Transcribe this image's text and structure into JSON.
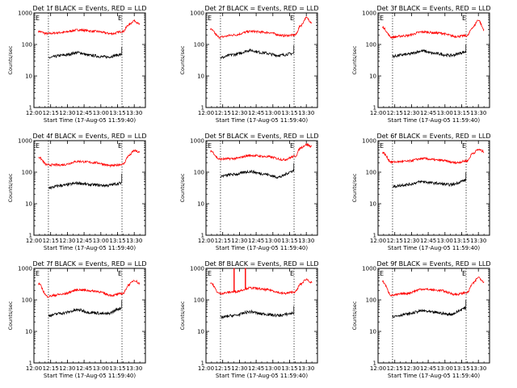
{
  "colors": {
    "events": "#000000",
    "lld": "#ff0000",
    "axes": "#000000",
    "background": "#ffffff"
  },
  "common": {
    "ylabel": "Counts/sec",
    "xlabel": "Start Time (17-Aug-05 11:59:40)",
    "x_ticks": [
      "12:00",
      "12:15",
      "12:30",
      "12:45",
      "13:00",
      "13:15",
      "13:30"
    ],
    "y_ticks": [
      "1",
      "10",
      "100",
      "1000"
    ],
    "marker_left": "E",
    "marker_right": "E"
  },
  "chart_data": [
    {
      "type": "line",
      "title": "Det 1f BLACK = Events, RED = LLD",
      "y_scale": "log",
      "ylim": [
        1,
        1000
      ],
      "xlim_minutes_after": [
        "12:00",
        "13:40"
      ],
      "dashed_lines_at": [
        "12:13",
        "13:19"
      ],
      "series": [
        {
          "color": "red",
          "x": [
            "12:04",
            "12:12",
            "12:25",
            "12:40",
            "12:55",
            "13:10",
            "13:20",
            "13:25",
            "13:30",
            "13:35"
          ],
          "values": [
            260,
            220,
            240,
            290,
            260,
            220,
            260,
            420,
            570,
            430
          ]
        },
        {
          "color": "black",
          "x": [
            "12:13",
            "12:25",
            "12:40",
            "12:50",
            "13:05",
            "13:19"
          ],
          "values": [
            38,
            45,
            55,
            45,
            40,
            48
          ]
        }
      ]
    },
    {
      "type": "line",
      "title": "Det 2f BLACK = Events, RED = LLD",
      "y_scale": "log",
      "ylim": [
        1,
        1000
      ],
      "xlim_minutes_after": [
        "12:00",
        "13:40"
      ],
      "dashed_lines_at": [
        "12:13",
        "13:19"
      ],
      "series": [
        {
          "color": "red",
          "x": [
            "12:04",
            "12:12",
            "12:25",
            "12:40",
            "12:55",
            "13:10",
            "13:20",
            "13:25",
            "13:30",
            "13:35"
          ],
          "values": [
            300,
            170,
            200,
            260,
            240,
            190,
            200,
            400,
            700,
            500
          ]
        },
        {
          "color": "black",
          "x": [
            "12:13",
            "12:25",
            "12:40",
            "12:50",
            "13:05",
            "13:19"
          ],
          "values": [
            38,
            48,
            65,
            55,
            45,
            52
          ]
        }
      ]
    },
    {
      "type": "line",
      "title": "Det 3f BLACK = Events, RED = LLD",
      "y_scale": "log",
      "ylim": [
        1,
        1000
      ],
      "xlim_minutes_after": [
        "12:00",
        "13:40"
      ],
      "dashed_lines_at": [
        "12:13",
        "13:19"
      ],
      "series": [
        {
          "color": "red",
          "x": [
            "12:04",
            "12:12",
            "12:25",
            "12:40",
            "12:55",
            "13:10",
            "13:20",
            "13:25",
            "13:30",
            "13:35"
          ],
          "values": [
            350,
            170,
            190,
            250,
            230,
            180,
            190,
            350,
            600,
            300
          ]
        },
        {
          "color": "black",
          "x": [
            "12:13",
            "12:25",
            "12:40",
            "12:50",
            "13:05",
            "13:19"
          ],
          "values": [
            42,
            48,
            62,
            52,
            45,
            58
          ]
        }
      ]
    },
    {
      "type": "line",
      "title": "Det 4f BLACK = Events, RED = LLD",
      "y_scale": "log",
      "ylim": [
        1,
        1000
      ],
      "xlim_minutes_after": [
        "12:00",
        "13:40"
      ],
      "dashed_lines_at": [
        "12:13",
        "13:19"
      ],
      "series": [
        {
          "color": "red",
          "x": [
            "12:04",
            "12:12",
            "12:25",
            "12:40",
            "12:55",
            "13:10",
            "13:20",
            "13:25",
            "13:30",
            "13:35"
          ],
          "values": [
            300,
            170,
            170,
            220,
            200,
            160,
            180,
            330,
            480,
            420
          ]
        },
        {
          "color": "black",
          "x": [
            "12:13",
            "12:25",
            "12:40",
            "12:50",
            "13:05",
            "13:19"
          ],
          "values": [
            32,
            38,
            45,
            40,
            38,
            45
          ]
        }
      ]
    },
    {
      "type": "line",
      "title": "Det 5f BLACK = Events, RED = LLD",
      "y_scale": "log",
      "ylim": [
        1,
        1000
      ],
      "xlim_minutes_after": [
        "12:00",
        "13:40"
      ],
      "dashed_lines_at": [
        "12:13",
        "13:19"
      ],
      "series": [
        {
          "color": "red",
          "x": [
            "12:04",
            "12:12",
            "12:25",
            "12:40",
            "12:55",
            "13:10",
            "13:20",
            "13:25",
            "13:30",
            "13:35"
          ],
          "values": [
            480,
            260,
            270,
            340,
            310,
            250,
            320,
            600,
            750,
            650
          ]
        },
        {
          "color": "black",
          "x": [
            "12:13",
            "12:25",
            "12:40",
            "12:50",
            "13:05",
            "13:19"
          ],
          "values": [
            75,
            85,
            105,
            90,
            70,
            110
          ]
        }
      ]
    },
    {
      "type": "line",
      "title": "Det 6f BLACK = Events, RED = LLD",
      "y_scale": "log",
      "ylim": [
        1,
        1000
      ],
      "xlim_minutes_after": [
        "12:00",
        "13:40"
      ],
      "dashed_lines_at": [
        "12:13",
        "13:19"
      ],
      "series": [
        {
          "color": "red",
          "x": [
            "12:04",
            "12:12",
            "12:25",
            "12:40",
            "12:55",
            "13:10",
            "13:20",
            "13:25",
            "13:30",
            "13:35"
          ],
          "values": [
            420,
            210,
            220,
            270,
            240,
            200,
            230,
            400,
            520,
            450
          ]
        },
        {
          "color": "black",
          "x": [
            "12:13",
            "12:25",
            "12:40",
            "12:50",
            "13:05",
            "13:19"
          ],
          "values": [
            35,
            40,
            50,
            45,
            40,
            55
          ]
        }
      ]
    },
    {
      "type": "line",
      "title": "Det 7f BLACK = Events, RED = LLD",
      "y_scale": "log",
      "ylim": [
        1,
        1000
      ],
      "xlim_minutes_after": [
        "12:00",
        "13:40"
      ],
      "dashed_lines_at": [
        "12:13",
        "13:19"
      ],
      "series": [
        {
          "color": "red",
          "x": [
            "12:04",
            "12:12",
            "12:25",
            "12:40",
            "12:55",
            "13:10",
            "13:20",
            "13:25",
            "13:30",
            "13:35"
          ],
          "values": [
            330,
            130,
            150,
            210,
            190,
            140,
            160,
            300,
            420,
            330
          ]
        },
        {
          "color": "black",
          "x": [
            "12:13",
            "12:25",
            "12:40",
            "12:50",
            "13:05",
            "13:19"
          ],
          "values": [
            32,
            38,
            48,
            40,
            36,
            55
          ]
        }
      ]
    },
    {
      "type": "line",
      "title": "Det 8f BLACK = Events, RED = LLD",
      "y_scale": "log",
      "ylim": [
        1,
        1000
      ],
      "xlim_minutes_after": [
        "12:00",
        "13:40"
      ],
      "dashed_lines_at": [
        "12:13",
        "13:19"
      ],
      "spikes_at": [
        "12:25",
        "12:35"
      ],
      "series": [
        {
          "color": "red",
          "x": [
            "12:04",
            "12:12",
            "12:25",
            "12:40",
            "12:55",
            "13:10",
            "13:20",
            "13:25",
            "13:30",
            "13:35"
          ],
          "values": [
            350,
            160,
            180,
            240,
            210,
            160,
            180,
            320,
            450,
            350
          ]
        },
        {
          "color": "black",
          "x": [
            "12:13",
            "12:25",
            "12:40",
            "12:50",
            "13:05",
            "13:19"
          ],
          "values": [
            28,
            32,
            42,
            36,
            32,
            38
          ]
        }
      ]
    },
    {
      "type": "line",
      "title": "Det 9f BLACK = Events, RED = LLD",
      "y_scale": "log",
      "ylim": [
        1,
        1000
      ],
      "xlim_minutes_after": [
        "12:00",
        "13:40"
      ],
      "dashed_lines_at": [
        "12:13",
        "13:19"
      ],
      "series": [
        {
          "color": "red",
          "x": [
            "12:04",
            "12:12",
            "12:25",
            "12:40",
            "12:55",
            "13:10",
            "13:20",
            "13:25",
            "13:30",
            "13:35"
          ],
          "values": [
            380,
            140,
            160,
            220,
            200,
            150,
            170,
            330,
            520,
            380
          ]
        },
        {
          "color": "black",
          "x": [
            "12:13",
            "12:25",
            "12:40",
            "12:50",
            "13:05",
            "13:19"
          ],
          "values": [
            30,
            35,
            45,
            40,
            35,
            55
          ]
        }
      ]
    }
  ]
}
